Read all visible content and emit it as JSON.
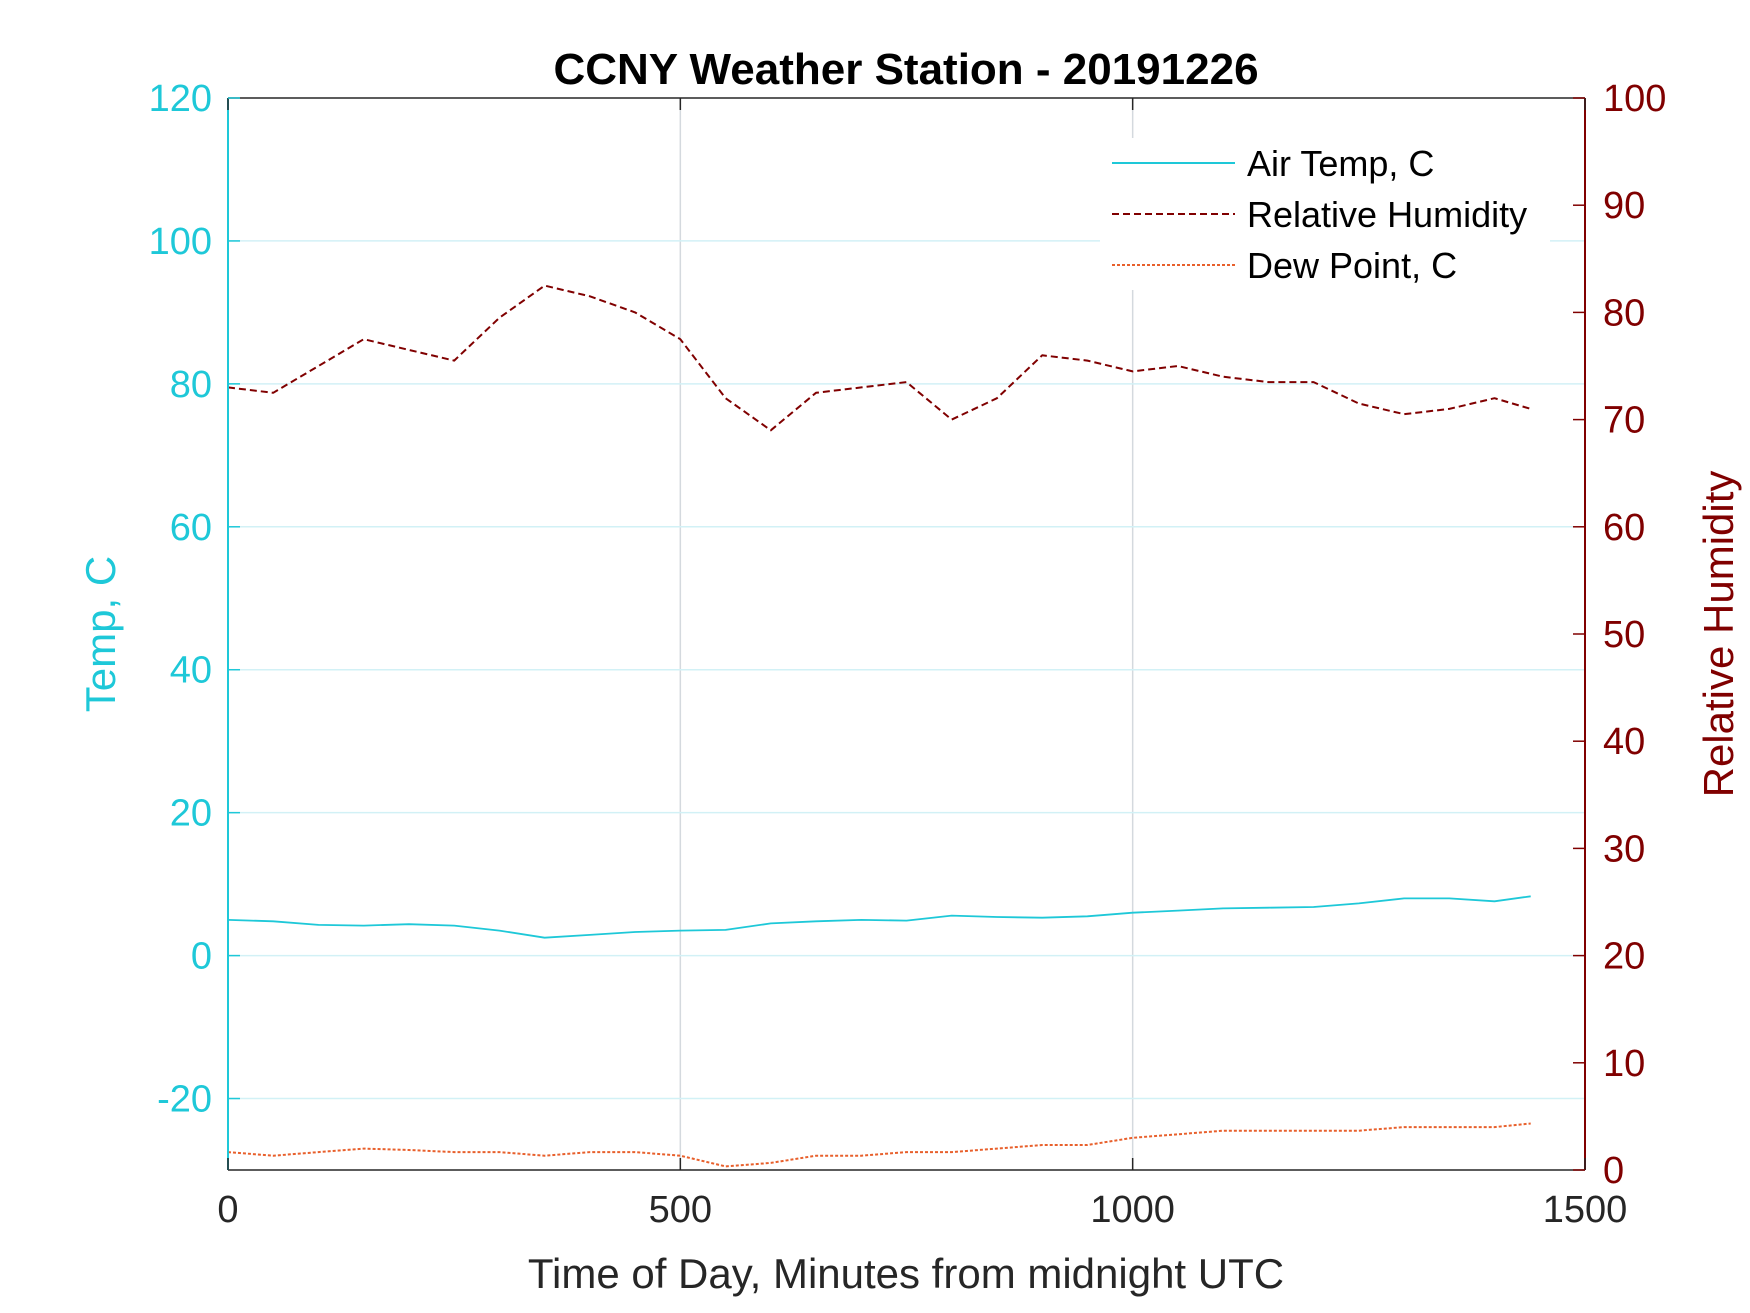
{
  "chart_data": {
    "type": "line",
    "title": "CCNY Weather Station - 20191226",
    "xlabel": "Time of Day, Minutes from midnight UTC",
    "ylabel_left": "Temp, C",
    "ylabel_right": "Relative Humidity",
    "xlim": [
      0,
      1500
    ],
    "ylim_left": [
      -30,
      120
    ],
    "ylim_right": [
      0,
      100
    ],
    "x_ticks": [
      "0",
      "500",
      "1000",
      "1500"
    ],
    "y_left_ticks": [
      "-20",
      "0",
      "20",
      "40",
      "60",
      "80",
      "100",
      "120"
    ],
    "y_right_ticks": [
      "0",
      "10",
      "20",
      "30",
      "40",
      "50",
      "60",
      "70",
      "80",
      "90",
      "100"
    ],
    "grid": true,
    "legend_location": "top-right",
    "colors": {
      "left_axis": "#1ec8d8",
      "right_axis": "#800000",
      "air_temp": "#1ec8d8",
      "relative_humidity": "#800000",
      "dew_point": "#e8602c"
    },
    "series": [
      {
        "name": "Air Temp, C",
        "axis": "left",
        "style": "solid",
        "x": [
          0,
          50,
          100,
          150,
          200,
          250,
          300,
          350,
          400,
          450,
          500,
          550,
          600,
          650,
          700,
          750,
          800,
          850,
          900,
          950,
          1000,
          1050,
          1100,
          1150,
          1200,
          1250,
          1300,
          1350,
          1400,
          1440
        ],
        "values": [
          5,
          4.8,
          4.3,
          4.2,
          4.4,
          4.2,
          3.5,
          2.5,
          2.9,
          3.3,
          3.5,
          3.6,
          4.5,
          4.8,
          5.0,
          4.9,
          5.6,
          5.4,
          5.3,
          5.5,
          6.0,
          6.3,
          6.6,
          6.7,
          6.8,
          7.3,
          8.0,
          8.0,
          7.6,
          8.3
        ]
      },
      {
        "name": "Relative Humidity",
        "axis": "right",
        "style": "dashed",
        "x": [
          0,
          50,
          100,
          150,
          200,
          250,
          300,
          350,
          400,
          450,
          500,
          550,
          600,
          650,
          700,
          750,
          800,
          850,
          900,
          950,
          1000,
          1050,
          1100,
          1150,
          1200,
          1250,
          1300,
          1350,
          1400,
          1440
        ],
        "values": [
          73,
          72.5,
          75,
          77.5,
          76.5,
          75.5,
          79.5,
          82.5,
          81.5,
          80,
          77.5,
          72,
          69,
          72.5,
          73,
          73.5,
          70,
          72,
          76,
          75.5,
          74.5,
          75,
          74,
          73.5,
          73.5,
          71.5,
          70.5,
          71,
          72,
          71
        ]
      },
      {
        "name": "Dew Point, C",
        "axis": "left",
        "style": "dotted",
        "x": [
          0,
          50,
          100,
          150,
          200,
          250,
          300,
          350,
          400,
          450,
          500,
          550,
          600,
          650,
          700,
          750,
          800,
          850,
          900,
          950,
          1000,
          1050,
          1100,
          1150,
          1200,
          1250,
          1300,
          1350,
          1400,
          1440
        ],
        "values": [
          -27.5,
          -28,
          -27.5,
          -27,
          -27.2,
          -27.5,
          -27.5,
          -28,
          -27.5,
          -27.5,
          -28,
          -29.5,
          -29,
          -28,
          -28,
          -27.5,
          -27.5,
          -27,
          -26.5,
          -26.5,
          -25.5,
          -25,
          -24.5,
          -24.5,
          -24.5,
          -24.5,
          -24,
          -24,
          -24,
          -23.5
        ]
      }
    ]
  }
}
